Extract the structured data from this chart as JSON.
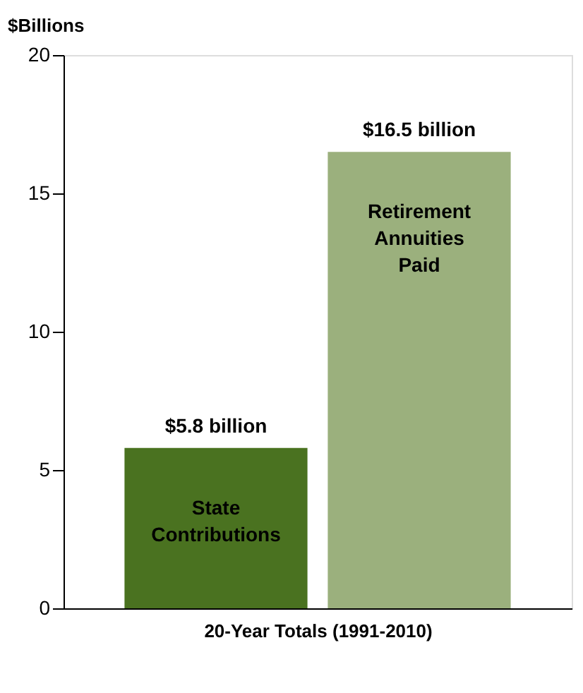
{
  "chart_data": {
    "type": "bar",
    "ylabel": "$Billions",
    "xlabel": "20-Year Totals (1991-2010)",
    "categories": [
      "State Contributions",
      "Retirement Annuities Paid"
    ],
    "values": [
      5.8,
      16.5
    ],
    "colors": [
      "#4a7220",
      "#9bb07d"
    ],
    "value_labels": [
      "$5.8 billion",
      "$16.5 billion"
    ],
    "ylim": [
      0,
      20
    ],
    "yticks": [
      0,
      5,
      10,
      15,
      20
    ],
    "grid": false
  }
}
